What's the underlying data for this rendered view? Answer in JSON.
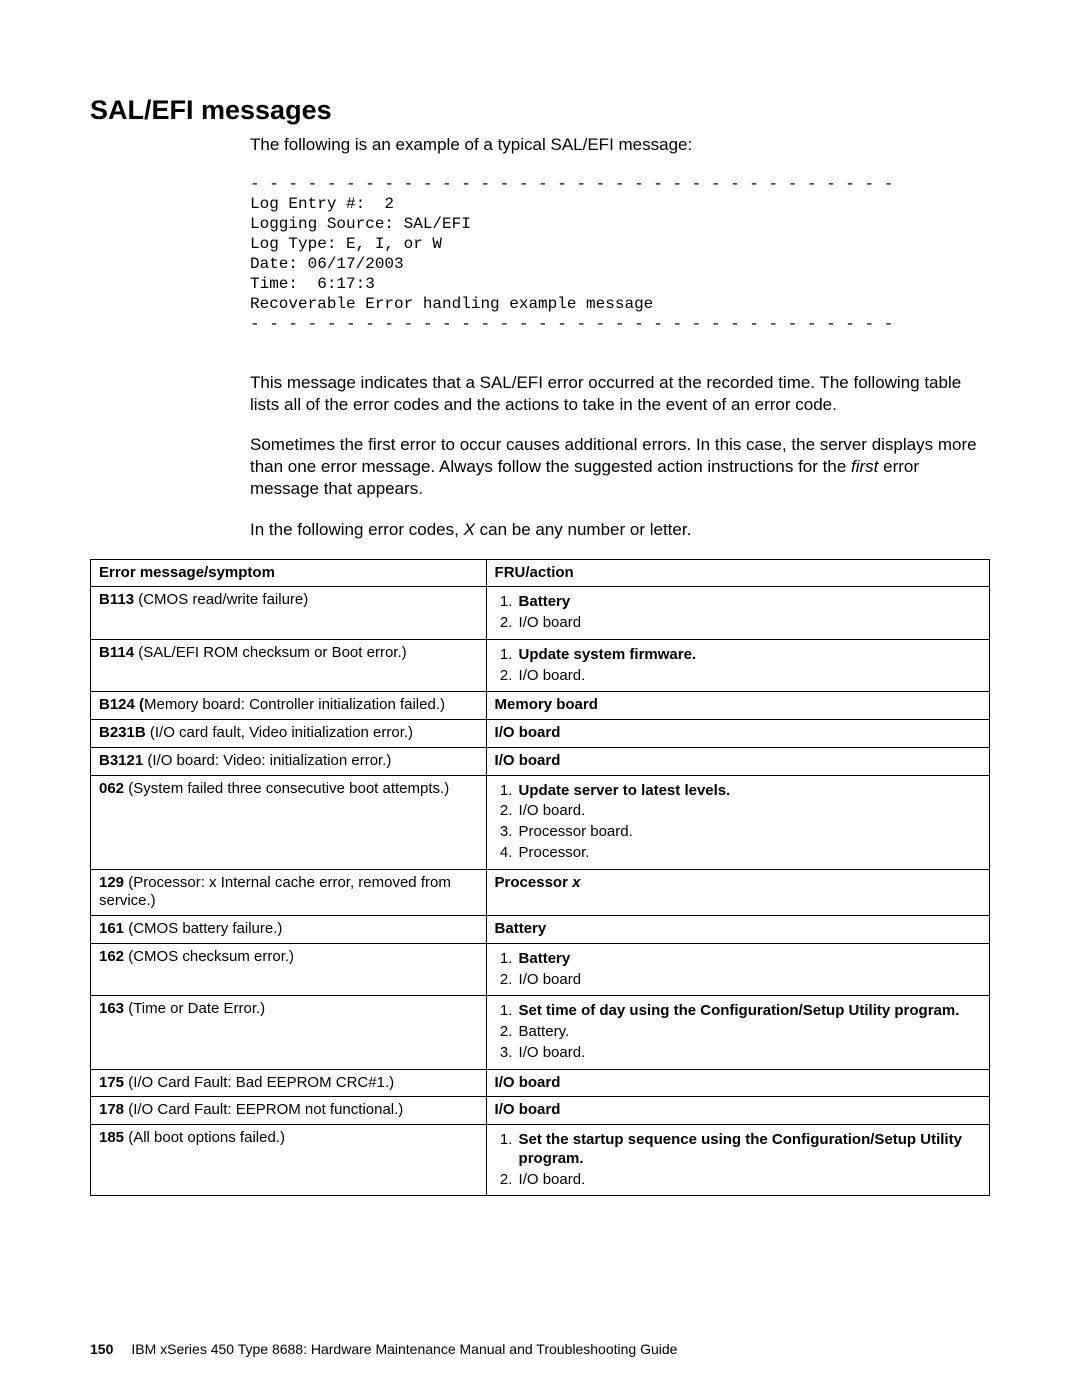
{
  "heading": "SAL/EFI messages",
  "intro": "The following is an example of a typical SAL/EFI message:",
  "code_lines": [
    "- - - - - - - - - - - - - - - - - - - - - - - - - - - - - - - - - -",
    "Log Entry #:  2",
    "Logging Source: SAL/EFI",
    "Log Type: E, I, or W",
    "Date: 06/17/2003",
    "Time:  6:17:3",
    "Recoverable Error handling example message",
    "- - - - - - - - - - - - - - - - - - - - - - - - - - - - - - - - - -"
  ],
  "para1": "This message indicates that a SAL/EFI error occurred at the recorded time. The following table lists all of the error codes and the actions to take in the event of an error code.",
  "para2_pre": "Sometimes the first error to occur causes additional errors. In this case, the server displays more than one error message. Always follow the suggested action instructions for the ",
  "para2_italic": "first",
  "para2_post": " error message that appears.",
  "para3_pre": "In the following error codes, ",
  "para3_italic": "X",
  "para3_post": " can be any number or letter.",
  "table": {
    "header_left": "Error message/symptom",
    "header_right": "FRU/action",
    "rows": [
      {
        "code": "B113",
        "desc": " (CMOS read/write failure)",
        "action_type": "list",
        "items": [
          {
            "text": "Battery",
            "bold": true
          },
          {
            "text": "I/O board",
            "bold": false
          }
        ]
      },
      {
        "code": "B114",
        "desc": " (SAL/EFI ROM checksum or Boot error.)",
        "action_type": "list",
        "items": [
          {
            "text": "Update system firmware.",
            "bold": true
          },
          {
            "text": "I/O board.",
            "bold": false
          }
        ]
      },
      {
        "code": "B124 (",
        "desc": "Memory board: Controller initialization failed.)",
        "action_type": "plain_bold",
        "plain": "Memory board"
      },
      {
        "code": "B231B",
        "desc": " (I/O card fault, Video initialization error.)",
        "action_type": "plain_bold",
        "plain": "I/O board"
      },
      {
        "code": "B3121",
        "desc": " (I/O board: Video: initialization error.)",
        "action_type": "plain_bold",
        "plain": "I/O board"
      },
      {
        "code": "062",
        "desc": " (System failed three consecutive boot attempts.)",
        "action_type": "list",
        "items": [
          {
            "text": "Update server to latest levels.",
            "bold": true
          },
          {
            "text": "I/O board.",
            "bold": false
          },
          {
            "text": "Processor board.",
            "bold": false
          },
          {
            "text": "Processor.",
            "bold": false
          }
        ]
      },
      {
        "code": "129",
        "desc": " (Processor: x Internal cache error, removed from service.)",
        "action_type": "proc_x"
      },
      {
        "code": "161",
        "desc": " (CMOS battery failure.)",
        "action_type": "plain_bold",
        "plain": "Battery"
      },
      {
        "code": "162",
        "desc": " (CMOS checksum error.)",
        "action_type": "list",
        "items": [
          {
            "text": "Battery",
            "bold": true
          },
          {
            "text": "I/O board",
            "bold": false
          }
        ]
      },
      {
        "code": "163",
        "desc": " (Time or Date Error.)",
        "action_type": "list",
        "items": [
          {
            "text": "Set time of day using the Configuration/Setup Utility program.",
            "bold": true
          },
          {
            "text": "Battery.",
            "bold": false
          },
          {
            "text": "I/O board.",
            "bold": false
          }
        ]
      },
      {
        "code": "175",
        "desc": " (I/O Card Fault: Bad EEPROM CRC#1.)",
        "action_type": "plain_bold",
        "plain": "I/O board"
      },
      {
        "code": "178",
        "desc": " (I/O Card Fault: EEPROM not functional.)",
        "action_type": "plain_bold",
        "plain": "I/O board"
      },
      {
        "code": "185",
        "desc": " (All boot options failed.)",
        "action_type": "list",
        "items": [
          {
            "text": "Set the startup sequence using the Configuration/Setup Utility program.",
            "bold": true
          },
          {
            "text": "I/O board.",
            "bold": false
          }
        ]
      }
    ]
  },
  "proc_x_prefix": "Processor ",
  "proc_x_var": "x",
  "footer": {
    "page_number": "150",
    "text": "IBM xSeries 450 Type 8688:  Hardware Maintenance Manual and Troubleshooting Guide"
  }
}
